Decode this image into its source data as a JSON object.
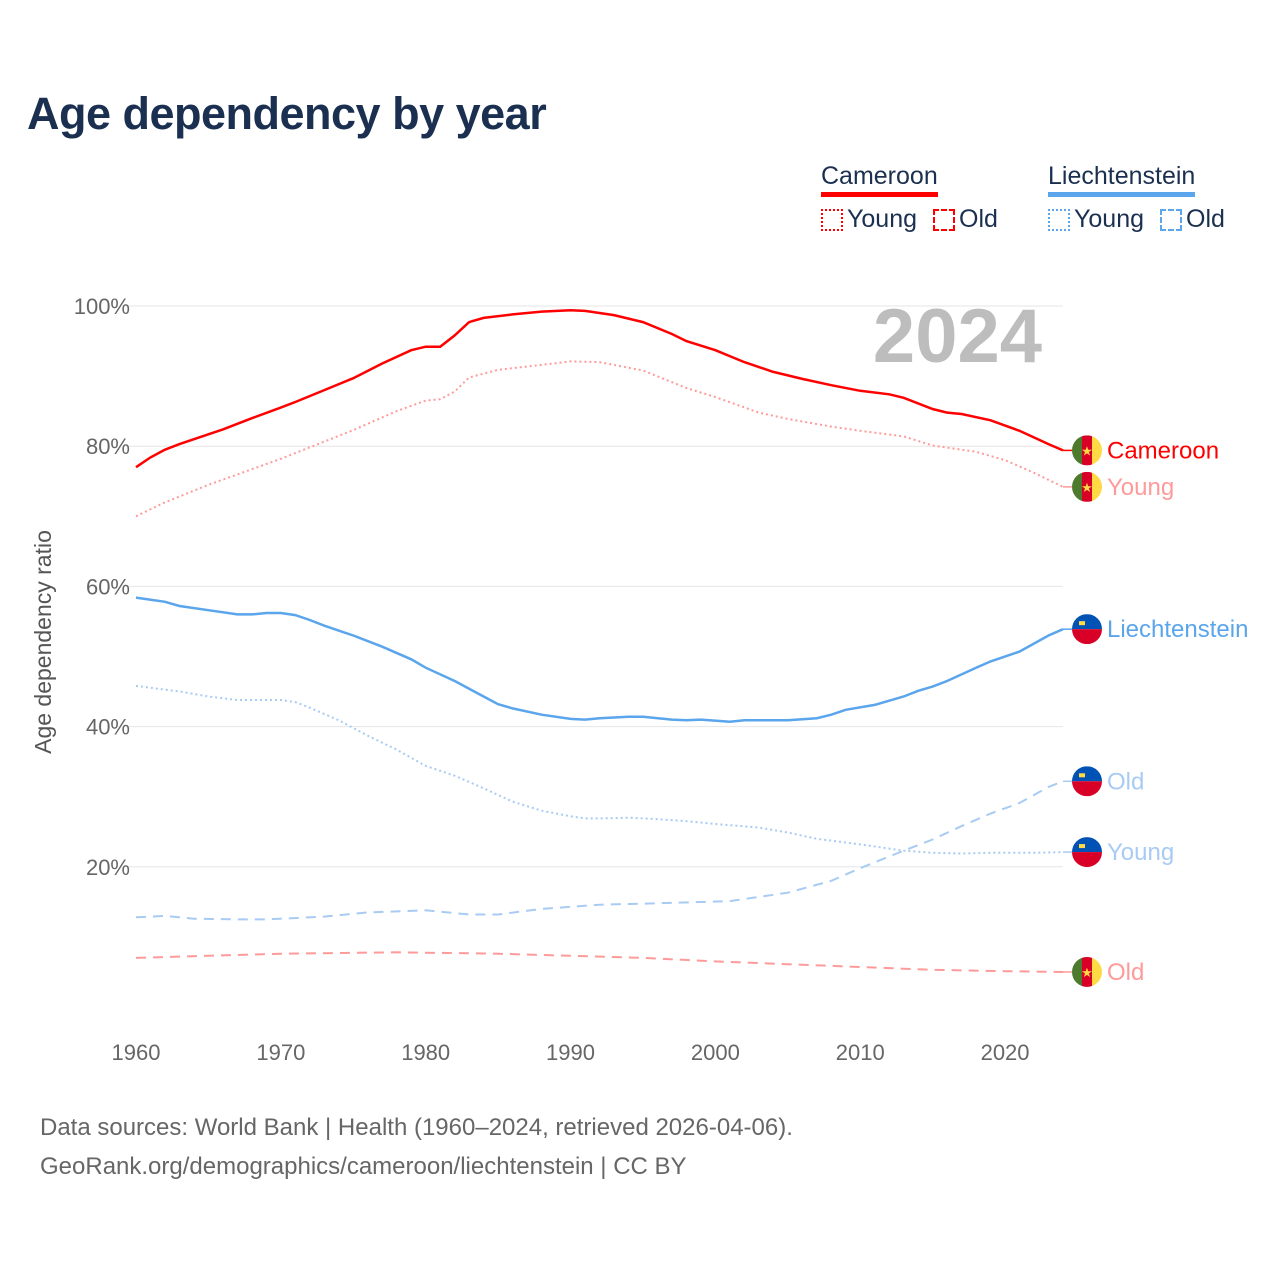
{
  "title": "Age dependency by year",
  "legend": [
    {
      "country": "Cameroon",
      "color": "#ff0000",
      "items": [
        {
          "label": "Young",
          "style": "dotted"
        },
        {
          "label": "Old",
          "style": "dashed"
        }
      ]
    },
    {
      "country": "Liechtenstein",
      "color": "#5aa5ec",
      "items": [
        {
          "label": "Young",
          "style": "dotted"
        },
        {
          "label": "Old",
          "style": "dashed"
        }
      ]
    }
  ],
  "year_badge": "2024",
  "source_lines": [
    "Data sources: World Bank | Health (1960–2024, retrieved 2026-04-06).",
    "GeoRank.org/demographics/cameroon/liechtenstein | CC BY"
  ],
  "chart_data": {
    "type": "line",
    "title": "Age dependency by year",
    "xlabel": "",
    "ylabel": "Age dependency ratio",
    "xlim": [
      1960,
      2024
    ],
    "ylim": [
      0,
      100
    ],
    "x_ticks": [
      1960,
      1970,
      1980,
      1990,
      2000,
      2010,
      2020
    ],
    "y_ticks": [
      {
        "value": 20,
        "label": "20%"
      },
      {
        "value": 40,
        "label": "40%"
      },
      {
        "value": 60,
        "label": "60%"
      },
      {
        "value": 80,
        "label": "80%"
      },
      {
        "value": 100,
        "label": "100%"
      }
    ],
    "grid": true,
    "series": [
      {
        "name": "Cameroon",
        "end_label": "Cameroon",
        "flag": "cameroon",
        "color": "#ff0000",
        "dash": "solid",
        "points": [
          [
            1960,
            77
          ],
          [
            1961,
            78.4
          ],
          [
            1962,
            79.5
          ],
          [
            1963,
            80.3
          ],
          [
            1965,
            81.7
          ],
          [
            1966,
            82.4
          ],
          [
            1968,
            84
          ],
          [
            1970,
            85.5
          ],
          [
            1971,
            86.3
          ],
          [
            1973,
            88
          ],
          [
            1975,
            89.7
          ],
          [
            1977,
            91.8
          ],
          [
            1979,
            93.7
          ],
          [
            1980,
            94.2
          ],
          [
            1981,
            94.2
          ],
          [
            1982,
            95.8
          ],
          [
            1983,
            97.7
          ],
          [
            1984,
            98.3
          ],
          [
            1986,
            98.8
          ],
          [
            1988,
            99.2
          ],
          [
            1990,
            99.4
          ],
          [
            1991,
            99.3
          ],
          [
            1993,
            98.7
          ],
          [
            1995,
            97.7
          ],
          [
            1997,
            96
          ],
          [
            1998,
            95
          ],
          [
            2000,
            93.7
          ],
          [
            2002,
            92
          ],
          [
            2004,
            90.6
          ],
          [
            2006,
            89.6
          ],
          [
            2008,
            88.7
          ],
          [
            2010,
            87.9
          ],
          [
            2012,
            87.4
          ],
          [
            2013,
            86.9
          ],
          [
            2015,
            85.3
          ],
          [
            2016,
            84.8
          ],
          [
            2017,
            84.6
          ],
          [
            2019,
            83.7
          ],
          [
            2021,
            82.2
          ],
          [
            2023,
            80.3
          ],
          [
            2024,
            79.4
          ]
        ]
      },
      {
        "name": "Cameroon Young",
        "end_label": "Young",
        "flag": "cameroon",
        "color": "#ff9a9a",
        "dash": "dotted",
        "points": [
          [
            1960,
            70
          ],
          [
            1962,
            72
          ],
          [
            1965,
            74.5
          ],
          [
            1970,
            78.2
          ],
          [
            1975,
            82.3
          ],
          [
            1978,
            85
          ],
          [
            1980,
            86.5
          ],
          [
            1981,
            86.7
          ],
          [
            1982,
            87.8
          ],
          [
            1983,
            89.8
          ],
          [
            1985,
            90.9
          ],
          [
            1988,
            91.6
          ],
          [
            1990,
            92.1
          ],
          [
            1992,
            92
          ],
          [
            1995,
            90.8
          ],
          [
            1998,
            88.3
          ],
          [
            2000,
            87
          ],
          [
            2003,
            84.8
          ],
          [
            2005,
            83.9
          ],
          [
            2008,
            82.8
          ],
          [
            2010,
            82.2
          ],
          [
            2013,
            81.4
          ],
          [
            2015,
            80.1
          ],
          [
            2018,
            79.2
          ],
          [
            2020,
            78
          ],
          [
            2022,
            76.2
          ],
          [
            2024,
            74.2
          ]
        ]
      },
      {
        "name": "Cameroon Old",
        "end_label": "Old",
        "flag": "cameroon",
        "color": "#ff9a9a",
        "dash": "dashed",
        "points": [
          [
            1960,
            7
          ],
          [
            1965,
            7.3
          ],
          [
            1970,
            7.6
          ],
          [
            1978,
            7.8
          ],
          [
            1985,
            7.6
          ],
          [
            1990,
            7.3
          ],
          [
            1995,
            7
          ],
          [
            2000,
            6.5
          ],
          [
            2005,
            6.1
          ],
          [
            2010,
            5.7
          ],
          [
            2015,
            5.3
          ],
          [
            2020,
            5.1
          ],
          [
            2024,
            5
          ]
        ]
      },
      {
        "name": "Liechtenstein",
        "end_label": "Liechtenstein",
        "flag": "liechtenstein",
        "color": "#5aa5ec",
        "dash": "solid",
        "points": [
          [
            1960,
            58.4
          ],
          [
            1962,
            57.8
          ],
          [
            1963,
            57.2
          ],
          [
            1965,
            56.6
          ],
          [
            1967,
            56
          ],
          [
            1968,
            56
          ],
          [
            1969,
            56.2
          ],
          [
            1970,
            56.2
          ],
          [
            1971,
            55.9
          ],
          [
            1972,
            55.2
          ],
          [
            1973,
            54.4
          ],
          [
            1975,
            53
          ],
          [
            1977,
            51.4
          ],
          [
            1979,
            49.6
          ],
          [
            1980,
            48.4
          ],
          [
            1982,
            46.5
          ],
          [
            1984,
            44.3
          ],
          [
            1985,
            43.2
          ],
          [
            1986,
            42.6
          ],
          [
            1988,
            41.7
          ],
          [
            1990,
            41.1
          ],
          [
            1991,
            41
          ],
          [
            1992,
            41.2
          ],
          [
            1994,
            41.4
          ],
          [
            1995,
            41.4
          ],
          [
            1997,
            41
          ],
          [
            1998,
            40.9
          ],
          [
            1999,
            41
          ],
          [
            2001,
            40.7
          ],
          [
            2002,
            40.9
          ],
          [
            2005,
            40.9
          ],
          [
            2007,
            41.2
          ],
          [
            2008,
            41.7
          ],
          [
            2009,
            42.4
          ],
          [
            2011,
            43.1
          ],
          [
            2013,
            44.3
          ],
          [
            2014,
            45.1
          ],
          [
            2015,
            45.7
          ],
          [
            2016,
            46.5
          ],
          [
            2018,
            48.4
          ],
          [
            2019,
            49.3
          ],
          [
            2021,
            50.7
          ],
          [
            2023,
            53
          ],
          [
            2024,
            53.9
          ]
        ]
      },
      {
        "name": "Liechtenstein Old",
        "end_label": "Old",
        "flag": "liechtenstein",
        "color": "#a8cbf3",
        "dash": "dashed",
        "points": [
          [
            1960,
            12.8
          ],
          [
            1962,
            13
          ],
          [
            1964,
            12.6
          ],
          [
            1967,
            12.5
          ],
          [
            1969,
            12.5
          ],
          [
            1973,
            12.9
          ],
          [
            1976,
            13.5
          ],
          [
            1980,
            13.8
          ],
          [
            1983,
            13.2
          ],
          [
            1985,
            13.2
          ],
          [
            1988,
            14
          ],
          [
            1992,
            14.6
          ],
          [
            1996,
            14.8
          ],
          [
            2001,
            15.1
          ],
          [
            2005,
            16.3
          ],
          [
            2008,
            18
          ],
          [
            2010,
            19.8
          ],
          [
            2013,
            22.3
          ],
          [
            2015,
            23.9
          ],
          [
            2017,
            25.8
          ],
          [
            2019,
            27.6
          ],
          [
            2021,
            29.1
          ],
          [
            2023,
            31.4
          ],
          [
            2024,
            32.2
          ]
        ]
      },
      {
        "name": "Liechtenstein Young",
        "end_label": "Young",
        "flag": "liechtenstein",
        "color": "#a8cbf3",
        "dash": "dotted",
        "points": [
          [
            1960,
            45.8
          ],
          [
            1963,
            45
          ],
          [
            1965,
            44.3
          ],
          [
            1967,
            43.8
          ],
          [
            1969,
            43.8
          ],
          [
            1970,
            43.8
          ],
          [
            1971,
            43.5
          ],
          [
            1972,
            42.7
          ],
          [
            1974,
            40.9
          ],
          [
            1976,
            38.7
          ],
          [
            1978,
            36.7
          ],
          [
            1980,
            34.4
          ],
          [
            1982,
            33
          ],
          [
            1984,
            31.2
          ],
          [
            1986,
            29.3
          ],
          [
            1988,
            28
          ],
          [
            1990,
            27.2
          ],
          [
            1991,
            26.9
          ],
          [
            1992,
            26.9
          ],
          [
            1994,
            27
          ],
          [
            1996,
            26.8
          ],
          [
            1998,
            26.5
          ],
          [
            2000,
            26.1
          ],
          [
            2003,
            25.6
          ],
          [
            2005,
            24.9
          ],
          [
            2007,
            24
          ],
          [
            2010,
            23.2
          ],
          [
            2013,
            22.3
          ],
          [
            2015,
            22
          ],
          [
            2017,
            21.9
          ],
          [
            2019,
            22
          ],
          [
            2022,
            22
          ],
          [
            2024,
            22.1
          ]
        ]
      }
    ]
  }
}
